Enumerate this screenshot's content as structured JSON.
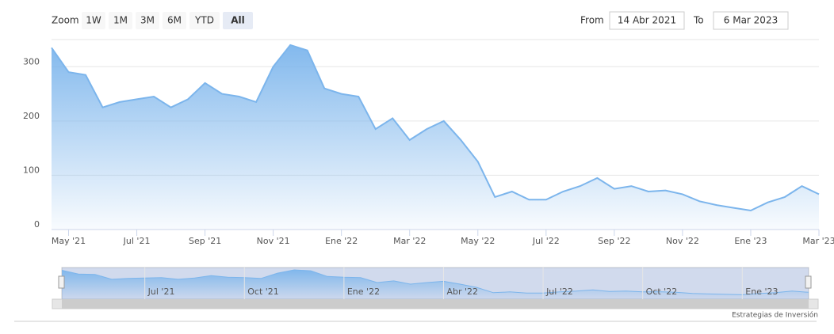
{
  "ui": {
    "zoom_label": "Zoom",
    "buttons": [
      "1W",
      "1M",
      "3M",
      "6M",
      "YTD",
      "All"
    ],
    "selected": 5,
    "from_label": "From",
    "from": "14 Abr 2021",
    "to_label": "To",
    "to": "6 Mar 2023",
    "credit": "Estrategias de Inversión"
  },
  "chart_data": {
    "type": "area",
    "color": "#7cb5ec",
    "grid": true,
    "categories": [
      null,
      "May '21",
      null,
      null,
      null,
      "Jul '21",
      null,
      null,
      null,
      "Sep '21",
      null,
      null,
      null,
      "Nov '21",
      null,
      null,
      null,
      "Ene '22",
      null,
      null,
      null,
      "Mar '22",
      null,
      null,
      null,
      "May '22",
      null,
      null,
      null,
      "Jul '22",
      null,
      null,
      null,
      "Sep '22",
      null,
      null,
      null,
      "Nov '22",
      null,
      null,
      null,
      "Ene '23",
      null,
      null,
      null,
      "Mar '23"
    ],
    "navigator_categories": [
      null,
      null,
      null,
      null,
      null,
      "Jul '21",
      null,
      null,
      null,
      null,
      null,
      "Oct '21",
      null,
      null,
      null,
      null,
      null,
      "Ene '22",
      null,
      null,
      null,
      null,
      null,
      "Abr '22",
      null,
      null,
      null,
      null,
      null,
      "Jul '22",
      null,
      null,
      null,
      null,
      null,
      "Oct '22",
      null,
      null,
      null,
      null,
      null,
      "Ene '23",
      null,
      null,
      null,
      null
    ],
    "values": [
      335,
      290,
      285,
      225,
      235,
      240,
      245,
      225,
      240,
      270,
      250,
      245,
      235,
      300,
      340,
      330,
      260,
      250,
      245,
      185,
      205,
      165,
      185,
      200,
      165,
      125,
      60,
      70,
      55,
      55,
      70,
      80,
      95,
      75,
      80,
      70,
      72,
      65,
      52,
      45,
      40,
      35,
      50,
      60,
      80,
      65
    ],
    "ylim": [
      0,
      350
    ],
    "yticks": [
      0,
      100,
      200,
      300
    ]
  }
}
